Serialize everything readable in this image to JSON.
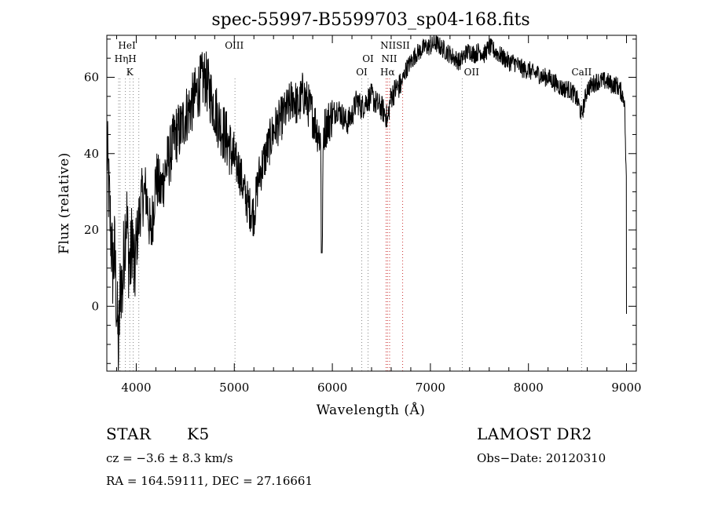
{
  "chart_data": {
    "type": "line",
    "title": "spec-55997-B5599703_sp04-168.fits",
    "xlabel": "Wavelength (Å)",
    "ylabel": "Flux (relative)",
    "xlim": [
      3700,
      9100
    ],
    "ylim": [
      -17,
      71
    ],
    "x_ticks": [
      4000,
      5000,
      6000,
      7000,
      8000,
      9000
    ],
    "y_ticks": [
      0,
      20,
      40,
      60
    ],
    "grid": false,
    "line_color": "#000000",
    "marker_color_main": "#888888",
    "marker_color_halpha": "#cc3333",
    "series": [
      {
        "x": [
          3700,
          3720,
          3740,
          3760,
          3780,
          3800,
          3820,
          3840,
          3860,
          3880,
          3900,
          3920,
          3940,
          3960,
          3980,
          4000,
          4050,
          4100,
          4150,
          4200,
          4250,
          4300,
          4350,
          4400,
          4450,
          4500,
          4550,
          4600,
          4650,
          4700,
          4750,
          4800,
          4850,
          4900,
          4950,
          5000,
          5050,
          5100,
          5150,
          5200,
          5250,
          5300,
          5350,
          5400,
          5450,
          5500,
          5550,
          5600,
          5650,
          5700,
          5750,
          5800,
          5850,
          5880,
          5895,
          5910,
          5950,
          6000,
          6050,
          6100,
          6150,
          6200,
          6250,
          6300,
          6350,
          6400,
          6450,
          6500,
          6550,
          6563,
          6580,
          6600,
          6650,
          6700,
          6750,
          6800,
          6850,
          6900,
          6950,
          7000,
          7050,
          7100,
          7150,
          7200,
          7250,
          7300,
          7350,
          7400,
          7450,
          7500,
          7550,
          7600,
          7650,
          7700,
          7750,
          7800,
          7850,
          7900,
          7950,
          8000,
          8050,
          8100,
          8150,
          8200,
          8250,
          8300,
          8350,
          8400,
          8450,
          8500,
          8542,
          8600,
          8650,
          8700,
          8750,
          8800,
          8850,
          8900,
          8950,
          8980,
          9000
        ],
        "y": [
          42,
          30,
          20,
          10,
          14,
          0,
          -12,
          8,
          4,
          18,
          25,
          14,
          10,
          20,
          6,
          16,
          28,
          30,
          18,
          34,
          30,
          36,
          40,
          45,
          46,
          50,
          52,
          55,
          58,
          60,
          56,
          52,
          48,
          45,
          42,
          38,
          36,
          30,
          26,
          24,
          34,
          38,
          42,
          46,
          48,
          50,
          52,
          55,
          52,
          56,
          53,
          50,
          46,
          44,
          14,
          46,
          48,
          50,
          52,
          50,
          48,
          50,
          54,
          52,
          54,
          55,
          53,
          52,
          50,
          48,
          52,
          55,
          57,
          58,
          62,
          64,
          66,
          67,
          68,
          68,
          69,
          68,
          67,
          66,
          65,
          64,
          66,
          67,
          66,
          67,
          66,
          68,
          67,
          66,
          65,
          64,
          64,
          63,
          62,
          62,
          61,
          61,
          60,
          60,
          59,
          58,
          57,
          57,
          56,
          54,
          50,
          57,
          58,
          59,
          59,
          59,
          58,
          58,
          56,
          54,
          30
        ]
      }
    ],
    "line_markers": [
      {
        "x": 3820,
        "label": "",
        "kind": "main"
      },
      {
        "x": 3835,
        "label": "",
        "kind": "main"
      },
      {
        "x": 3889,
        "label": "Hη",
        "kind": "main"
      },
      {
        "x": 3934,
        "label": "K",
        "kind": "main"
      },
      {
        "x": 3969,
        "label": "H",
        "kind": "main"
      },
      {
        "x": 4026,
        "label": "HeI",
        "kind": "main"
      },
      {
        "x": 5007,
        "label": "OIII",
        "kind": "main"
      },
      {
        "x": 6300,
        "label": "OI",
        "kind": "main"
      },
      {
        "x": 6364,
        "label": "OI",
        "kind": "main"
      },
      {
        "x": 6548,
        "label": "NII",
        "kind": "halpha"
      },
      {
        "x": 6563,
        "label": "Hα",
        "kind": "halpha"
      },
      {
        "x": 6584,
        "label": "NII",
        "kind": "halpha"
      },
      {
        "x": 6717,
        "label": "SII",
        "kind": "halpha"
      },
      {
        "x": 7325,
        "label": "OII",
        "kind": "main"
      },
      {
        "x": 8542,
        "label": "CaII",
        "kind": "main"
      }
    ],
    "marker_label_rows": [
      {
        "text": "HeI",
        "x": 3905,
        "row": 0
      },
      {
        "text": "HηH",
        "x": 3890,
        "row": 1
      },
      {
        "text": "K",
        "x": 3934,
        "row": 2
      },
      {
        "text": "OIII",
        "x": 5000,
        "row": 0
      },
      {
        "text": "OI",
        "x": 6364,
        "row": 1
      },
      {
        "text": "OI",
        "x": 6300,
        "row": 2
      },
      {
        "text": "NIISII",
        "x": 6640,
        "row": 0
      },
      {
        "text": "NII",
        "x": 6580,
        "row": 1
      },
      {
        "text": "Hα",
        "x": 6563,
        "row": 2
      },
      {
        "text": "OII",
        "x": 7420,
        "row": 2
      },
      {
        "text": "CaII",
        "x": 8542,
        "row": 2
      }
    ]
  },
  "info": {
    "class": "STAR",
    "subclass": "K5",
    "cz": "cz = −3.6 ± 8.3 km/s",
    "radec": "RA = 164.59111, DEC =  27.16661",
    "survey": "LAMOST DR2",
    "obsdate": "Obs−Date: 20120310"
  }
}
